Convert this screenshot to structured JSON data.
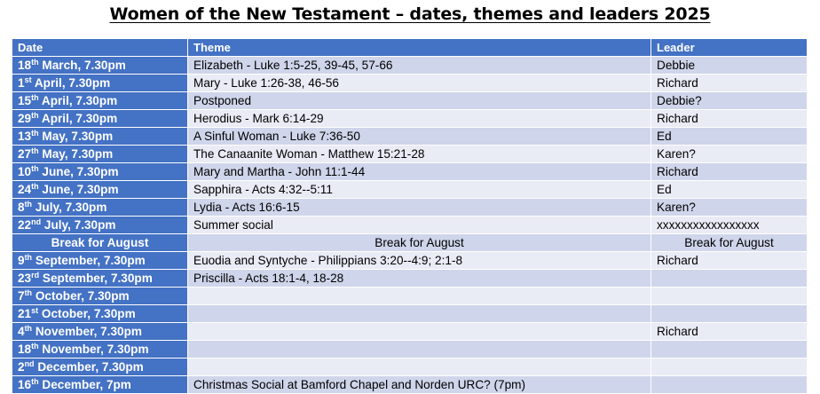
{
  "title": "Women of the New Testament – dates, themes and leaders 2025",
  "headers": {
    "date": "Date",
    "theme": "Theme",
    "leader": "Leader"
  },
  "rows": [
    {
      "day": "18",
      "suffix": "th",
      "rest": " March, 7.30pm",
      "theme": "Elizabeth - Luke 1:5-25, 39-45, 57-66",
      "leader": "Debbie"
    },
    {
      "day": "1",
      "suffix": "st",
      "rest": " April, 7.30pm",
      "theme": "Mary - Luke 1:26-38, 46-56",
      "leader": "Richard"
    },
    {
      "day": "15",
      "suffix": "th",
      "rest": " April, 7.30pm",
      "theme": "Postponed",
      "leader": "Debbie?"
    },
    {
      "day": "29",
      "suffix": "th",
      "rest": " April, 7.30pm",
      "theme": "Herodius - Mark 6:14-29",
      "leader": "Richard"
    },
    {
      "day": "13",
      "suffix": "th",
      "rest": " May, 7.30pm",
      "theme": "A Sinful Woman - Luke 7:36-50",
      "leader": "Ed"
    },
    {
      "day": "27",
      "suffix": "th",
      "rest": " May, 7.30pm",
      "theme": "The Canaanite Woman - Matthew 15:21-28",
      "leader": "Karen?"
    },
    {
      "day": "10",
      "suffix": "th",
      "rest": " June, 7.30pm",
      "theme": "Mary and Martha - John 11:1-44",
      "leader": "Richard"
    },
    {
      "day": "24",
      "suffix": "th",
      "rest": " June, 7.30pm",
      "theme": "Sapphira - Acts 4:32--5:11",
      "leader": "Ed"
    },
    {
      "day": "8",
      "suffix": "th",
      "rest": " July, 7.30pm",
      "theme": "Lydia - Acts 16:6-15",
      "leader": "Karen?"
    },
    {
      "day": "22",
      "suffix": "nd",
      "rest": " July, 7.30pm",
      "theme": "Summer social",
      "leader": "xxxxxxxxxxxxxxxxx"
    },
    {
      "break": true,
      "date_text": "Break for August",
      "theme": "Break for August",
      "leader": "Break for August"
    },
    {
      "day": "9",
      "suffix": "th",
      "rest": " September, 7.30pm",
      "theme": "Euodia and Syntyche - Philippians 3:20--4:9; 2:1-8",
      "leader": "Richard"
    },
    {
      "day": "23",
      "suffix": "rd",
      "rest": " September, 7.30pm",
      "theme": "Priscilla - Acts 18:1-4, 18-28",
      "leader": ""
    },
    {
      "day": "7",
      "suffix": "th",
      "rest": " October, 7.30pm",
      "theme": "",
      "leader": ""
    },
    {
      "day": "21",
      "suffix": "st",
      "rest": " October, 7.30pm",
      "theme": "",
      "leader": ""
    },
    {
      "day": "4",
      "suffix": "th",
      "rest": " November, 7.30pm",
      "theme": "",
      "leader": "Richard"
    },
    {
      "day": "18",
      "suffix": "th",
      "rest": " November, 7.30pm",
      "theme": "",
      "leader": ""
    },
    {
      "day": "2",
      "suffix": "nd",
      "rest": " December, 7.30pm",
      "theme": "",
      "leader": ""
    },
    {
      "day": "16",
      "suffix": "th",
      "rest": " December, 7pm",
      "theme": "Christmas Social at Bamford Chapel and Norden URC? (7pm)",
      "leader": ""
    }
  ]
}
